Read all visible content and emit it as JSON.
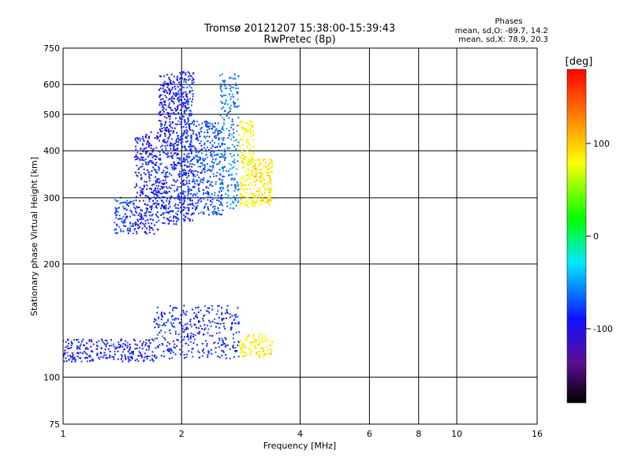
{
  "chart_data": {
    "type": "scatter",
    "title": "Tromsø 20121207 15:38:00-15:39:43",
    "subtitle": "RwPretec (8p)",
    "xlabel": "Frequency [MHz]",
    "ylabel": "Stationary phase Virtual Height [km]",
    "x_scale": "log",
    "y_scale": "log",
    "xlim": [
      1,
      16
    ],
    "ylim": [
      75,
      750
    ],
    "x_ticks": [
      "1",
      "2",
      "4",
      "6",
      "8",
      "10",
      "16"
    ],
    "y_ticks": [
      "75",
      "100",
      "200",
      "300",
      "400",
      "500",
      "600",
      "750"
    ],
    "grid": true,
    "colorbar": {
      "label": "[deg]",
      "range": [
        -180,
        180
      ],
      "ticks": [
        "100",
        "0",
        "-100"
      ],
      "colors": [
        "#000000",
        "#5b0f8f",
        "#1010ff",
        "#00e8ff",
        "#00ff00",
        "#ffff00",
        "#ff8000",
        "#ff0000"
      ]
    },
    "annotation": {
      "heading": "Phases",
      "line1": "mean, sd,O: -89.7, 14.2",
      "line2": "mean, sd,X: 78.9, 20.3"
    },
    "series": [
      {
        "points": [
          {
            "x_range": [
              1.35,
              1.52
            ],
            "y_range": [
              240,
              300
            ],
            "phase": -85,
            "count": 90
          },
          {
            "x_range": [
              1.52,
              1.75
            ],
            "y_range": [
              240,
              450
            ],
            "phase": -100,
            "count": 320
          },
          {
            "x_range": [
              1.75,
              1.95
            ],
            "y_range": [
              255,
              640
            ],
            "phase": -100,
            "count": 380
          },
          {
            "x_range": [
              1.95,
              2.15
            ],
            "y_range": [
              260,
              650
            ],
            "phase": -95,
            "count": 420
          },
          {
            "x_range": [
              2.15,
              2.55
            ],
            "y_range": [
              270,
              480
            ],
            "phase": -85,
            "count": 320
          },
          {
            "x_range": [
              2.5,
              2.8
            ],
            "y_range": [
              280,
              640
            ],
            "phase": -70,
            "count": 220
          },
          {
            "x_range": [
              2.8,
              3.05
            ],
            "y_range": [
              280,
              480
            ],
            "phase": 80,
            "count": 180
          },
          {
            "x_range": [
              3.05,
              3.4
            ],
            "y_range": [
              285,
              380
            ],
            "phase": 90,
            "count": 160
          }
        ],
        "phase_mean": -89.7,
        "phase_sd": 14.2
      },
      {
        "points": [
          {
            "x_range": [
              1.0,
              1.7
            ],
            "y_range": [
              110,
              126
            ],
            "phase": -100,
            "count": 260
          },
          {
            "x_range": [
              1.7,
              2.8
            ],
            "y_range": [
              112,
              155
            ],
            "phase": -95,
            "count": 340
          },
          {
            "x_range": [
              2.8,
              3.4
            ],
            "y_range": [
              113,
              130
            ],
            "phase": 85,
            "count": 110
          }
        ]
      }
    ]
  }
}
